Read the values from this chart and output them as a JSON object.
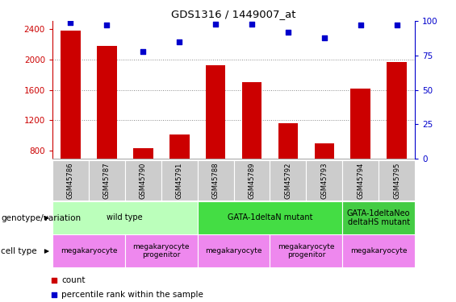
{
  "title": "GDS1316 / 1449007_at",
  "samples": [
    "GSM45786",
    "GSM45787",
    "GSM45790",
    "GSM45791",
    "GSM45788",
    "GSM45789",
    "GSM45792",
    "GSM45793",
    "GSM45794",
    "GSM45795"
  ],
  "counts": [
    2380,
    2180,
    840,
    1020,
    1920,
    1700,
    1160,
    900,
    1620,
    1960
  ],
  "percentiles": [
    99,
    97,
    78,
    85,
    98,
    98,
    92,
    88,
    97,
    97
  ],
  "ylim_left": [
    700,
    2500
  ],
  "ylim_right": [
    0,
    100
  ],
  "yticks_left": [
    800,
    1200,
    1600,
    2000,
    2400
  ],
  "yticks_right": [
    0,
    25,
    50,
    75,
    100
  ],
  "bar_color": "#cc0000",
  "dot_color": "#0000cc",
  "grid_dotted_color": "#888888",
  "axis_color_left": "#cc0000",
  "axis_color_right": "#0000cc",
  "tick_bg_color": "#cccccc",
  "genotype_groups": [
    {
      "label": "wild type",
      "start": 0,
      "end": 4,
      "color": "#bbffbb"
    },
    {
      "label": "GATA-1deltaN mutant",
      "start": 4,
      "end": 8,
      "color": "#44dd44"
    },
    {
      "label": "GATA-1deltaNeo\ndeltaHS mutant",
      "start": 8,
      "end": 10,
      "color": "#44cc44"
    }
  ],
  "cell_type_groups": [
    {
      "label": "megakaryocyte",
      "start": 0,
      "end": 2,
      "color": "#ee88ee"
    },
    {
      "label": "megakaryocyte\nprogenitor",
      "start": 2,
      "end": 4,
      "color": "#ee88ee"
    },
    {
      "label": "megakaryocyte",
      "start": 4,
      "end": 6,
      "color": "#ee88ee"
    },
    {
      "label": "megakaryocyte\nprogenitor",
      "start": 6,
      "end": 8,
      "color": "#ee88ee"
    },
    {
      "label": "megakaryocyte",
      "start": 8,
      "end": 10,
      "color": "#ee88ee"
    }
  ],
  "genotype_label": "genotype/variation",
  "cell_type_label": "cell type",
  "legend_count_label": "count",
  "legend_pct_label": "percentile rank within the sample",
  "fig_width": 5.65,
  "fig_height": 3.75,
  "dpi": 100
}
